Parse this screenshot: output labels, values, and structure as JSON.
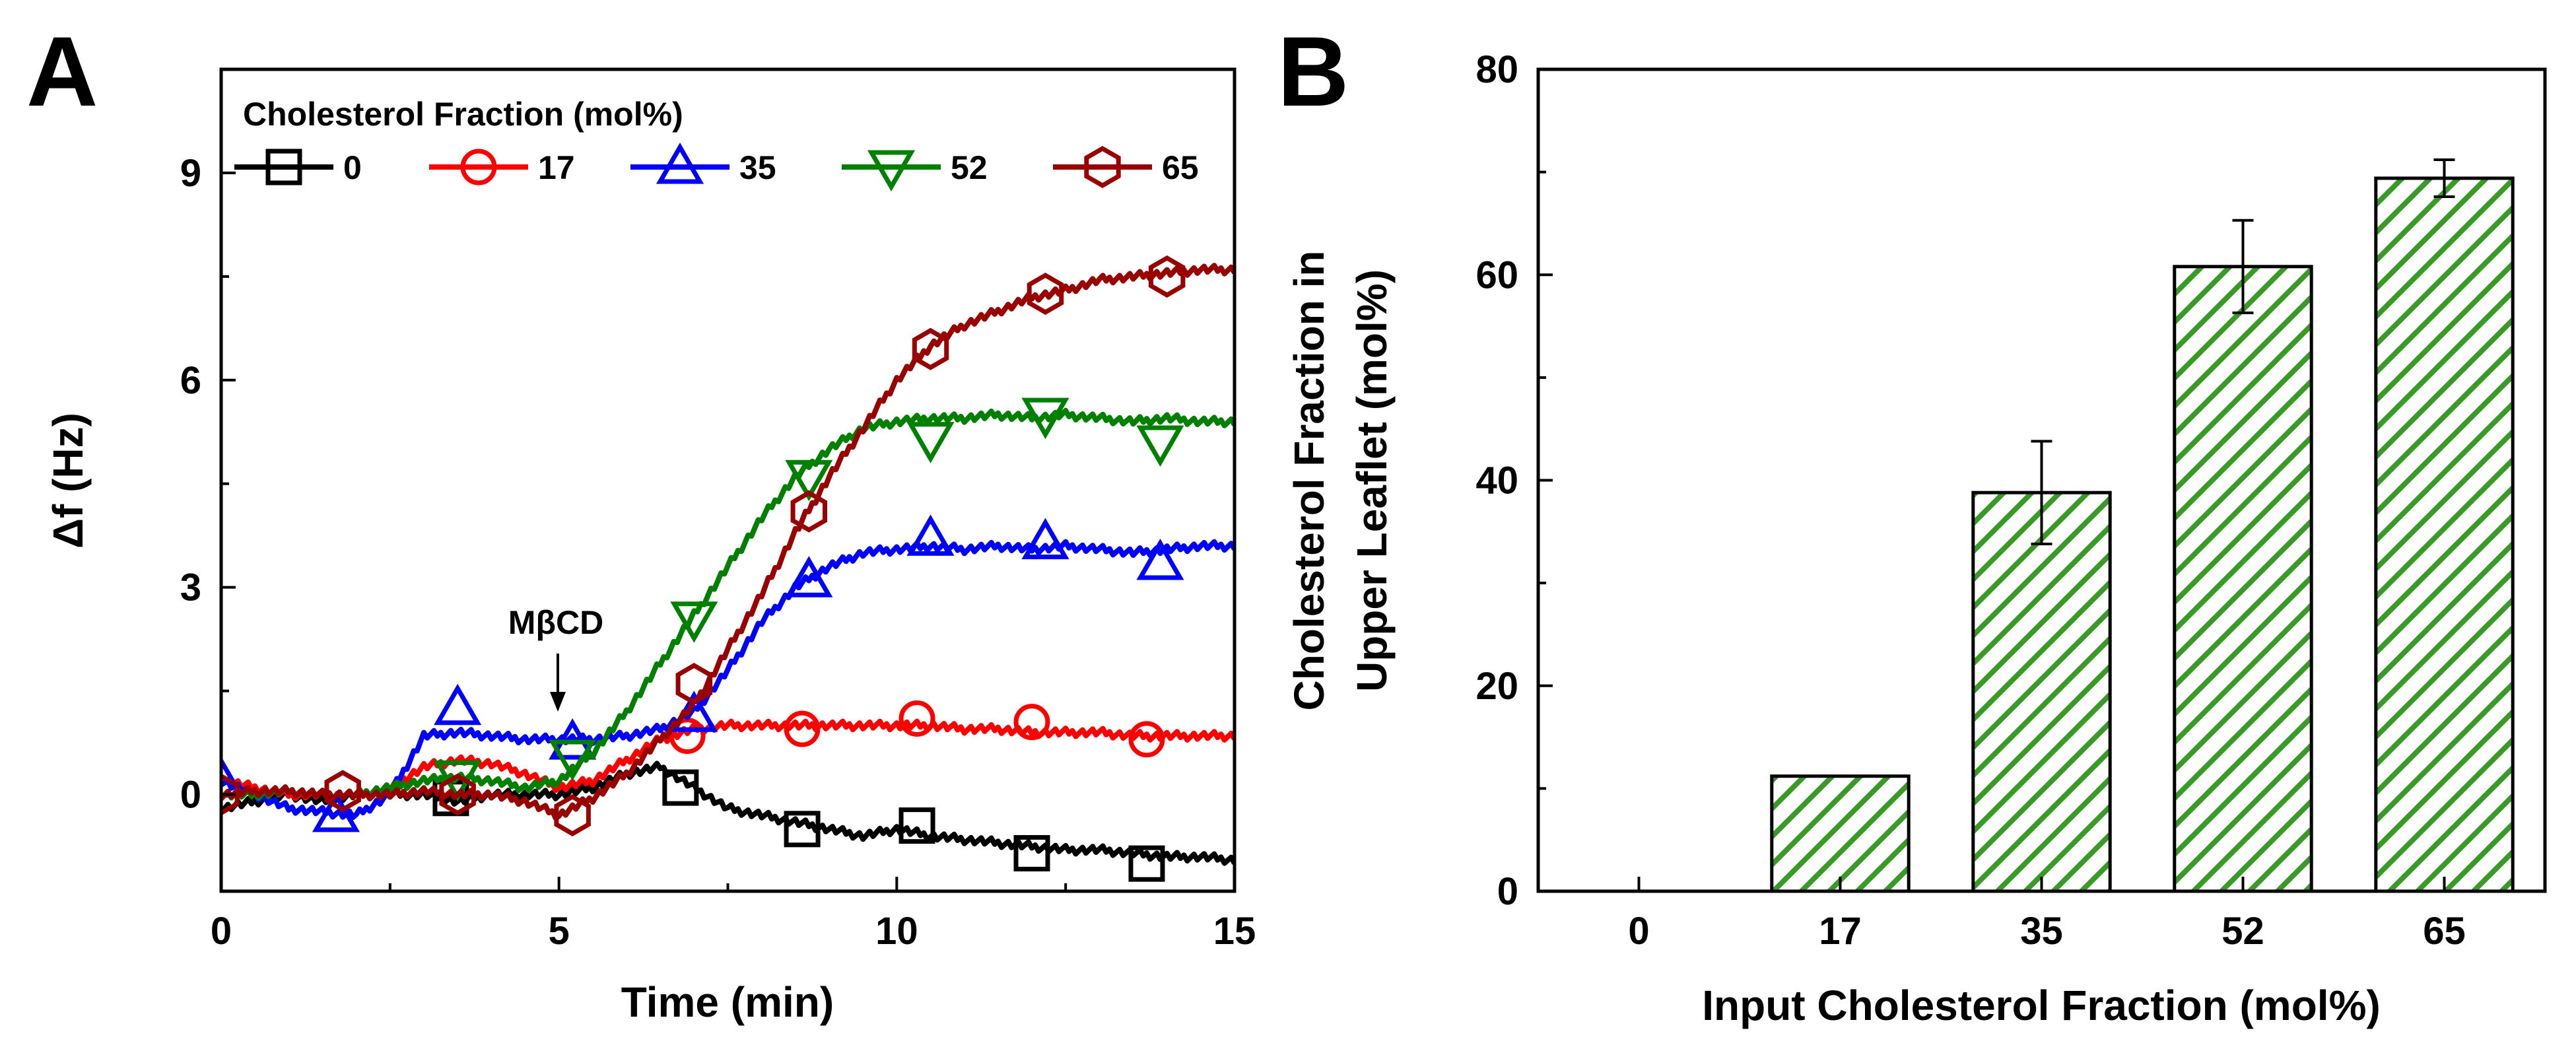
{
  "chart_data": [
    {
      "type": "line",
      "panel": "A",
      "xlabel": "Time (min)",
      "ylabel": "Δf (Hz)",
      "xlim": [
        0,
        15
      ],
      "ylim": [
        -1.4,
        10.5
      ],
      "xticks": [
        0,
        5,
        10,
        15
      ],
      "yticks": [
        0,
        3,
        6,
        9
      ],
      "legend_title": "Cholesterol Fraction (mol%)",
      "annotation": "MβCD",
      "annotation_x": 5,
      "series": [
        {
          "name": "0",
          "color": "#000000",
          "marker": "square",
          "x": [
            0,
            0.5,
            1,
            1.5,
            2,
            2.5,
            3,
            3.5,
            4,
            4.5,
            5,
            5.5,
            6,
            6.5,
            7,
            7.5,
            8,
            8.5,
            9,
            9.5,
            10,
            10.5,
            11,
            11.5,
            12,
            12.5,
            13,
            13.5,
            14,
            14.5,
            15
          ],
          "y": [
            -0.2,
            -0.1,
            0,
            -0.1,
            0,
            0,
            0,
            -0.1,
            0,
            0,
            0,
            0.1,
            0.3,
            0.4,
            0.1,
            -0.2,
            -0.3,
            -0.4,
            -0.5,
            -0.6,
            -0.5,
            -0.6,
            -0.65,
            -0.7,
            -0.75,
            -0.8,
            -0.8,
            -0.85,
            -0.9,
            -0.9,
            -0.95
          ],
          "mx": [
            3.4,
            6.8,
            8.6,
            10.3,
            12,
            13.7
          ],
          "my": [
            -0.05,
            0.1,
            -0.5,
            -0.45,
            -0.85,
            -1.0
          ]
        },
        {
          "name": "17",
          "color": "#ff0000",
          "marker": "circle",
          "x": [
            0,
            0.5,
            1,
            1.5,
            2,
            2.5,
            3,
            3.5,
            4,
            4.5,
            5,
            5.5,
            6,
            6.5,
            7,
            7.5,
            8,
            8.5,
            9,
            9.5,
            10,
            10.5,
            11,
            11.5,
            12,
            12.5,
            13,
            13.5,
            14,
            14.5,
            15
          ],
          "y": [
            0.2,
            0.1,
            0,
            0,
            0,
            0.1,
            0.4,
            0.5,
            0.45,
            0.3,
            0.1,
            0.2,
            0.5,
            0.8,
            0.95,
            1.0,
            1.0,
            1.0,
            1.0,
            1.0,
            1.0,
            1.0,
            0.95,
            0.95,
            0.9,
            0.9,
            0.9,
            0.85,
            0.85,
            0.85,
            0.85
          ],
          "mx": [
            6.9,
            8.6,
            10.3,
            12,
            13.7
          ],
          "my": [
            0.85,
            0.95,
            1.1,
            1.05,
            0.8
          ]
        },
        {
          "name": "35",
          "color": "#0000ff",
          "marker": "triangle-up",
          "x": [
            0,
            0.5,
            1,
            1.5,
            2,
            2.5,
            3,
            3.5,
            4,
            4.5,
            5,
            5.5,
            6,
            6.5,
            7,
            7.5,
            8,
            8.5,
            9,
            9.5,
            10,
            10.5,
            11,
            11.5,
            12,
            12.5,
            13,
            13.5,
            14,
            14.5,
            15
          ],
          "y": [
            0.2,
            0,
            -0.2,
            -0.25,
            -0.3,
            0,
            0.85,
            0.9,
            0.85,
            0.8,
            0.8,
            0.8,
            0.85,
            0.95,
            1.2,
            1.8,
            2.5,
            3.0,
            3.3,
            3.5,
            3.55,
            3.6,
            3.55,
            3.6,
            3.55,
            3.6,
            3.55,
            3.5,
            3.55,
            3.6,
            3.6
          ],
          "mx": [
            0,
            1.7,
            3.5,
            5.2,
            7.0,
            8.7,
            10.5,
            12.2,
            13.9
          ],
          "my": [
            0.2,
            -0.3,
            1.25,
            0.75,
            1.15,
            3.1,
            3.7,
            3.65,
            3.35
          ]
        },
        {
          "name": "52",
          "color": "#008000",
          "marker": "triangle-down",
          "x": [
            0,
            0.5,
            1,
            1.5,
            2,
            2.5,
            3,
            3.5,
            4,
            4.5,
            5,
            5.5,
            6,
            6.5,
            7,
            7.5,
            8,
            8.5,
            9,
            9.5,
            10,
            10.5,
            11,
            11.5,
            12,
            12.5,
            13,
            13.5,
            14,
            14.5,
            15
          ],
          "y": [
            0,
            0,
            0.05,
            0,
            0,
            0.1,
            0.2,
            0.25,
            0.2,
            0.1,
            0.2,
            0.6,
            1.2,
            1.9,
            2.6,
            3.3,
            4.0,
            4.6,
            5.0,
            5.3,
            5.4,
            5.45,
            5.45,
            5.5,
            5.45,
            5.5,
            5.45,
            5.4,
            5.45,
            5.4,
            5.4
          ],
          "mx": [
            3.5,
            5.2,
            7.0,
            8.7,
            10.5,
            12.2,
            13.9
          ],
          "my": [
            0.25,
            0.55,
            2.55,
            4.6,
            5.15,
            5.5,
            5.1
          ]
        },
        {
          "name": "65",
          "color": "#990000",
          "marker": "hexagon",
          "x": [
            0,
            0.5,
            1,
            1.5,
            2,
            2.5,
            3,
            3.5,
            4,
            4.5,
            5,
            5.5,
            6,
            6.5,
            7,
            7.5,
            8,
            8.5,
            9,
            9.5,
            10,
            10.5,
            11,
            11.5,
            12,
            12.5,
            13,
            13.5,
            14,
            14.5,
            15
          ],
          "y": [
            0,
            0.05,
            0.05,
            0,
            0,
            0,
            0.05,
            0,
            0,
            -0.1,
            -0.3,
            -0.05,
            0.3,
            0.8,
            1.3,
            2.1,
            2.9,
            3.8,
            4.6,
            5.3,
            6.0,
            6.5,
            6.8,
            7.0,
            7.2,
            7.3,
            7.45,
            7.5,
            7.55,
            7.6,
            7.6
          ],
          "mx": [
            0,
            1.8,
            3.5,
            5.2,
            7.0,
            8.7,
            10.5,
            12.2,
            14.0
          ],
          "my": [
            0,
            0.05,
            0,
            -0.3,
            1.6,
            4.1,
            6.45,
            7.25,
            7.5
          ]
        }
      ]
    },
    {
      "type": "bar",
      "panel": "B",
      "xlabel": "Input Cholesterol Fraction (mol%)",
      "ylabel_lines": [
        "Cholesterol Fraction in",
        "Upper Leaflet (mol%)"
      ],
      "ylim": [
        0,
        80
      ],
      "yticks": [
        0,
        20,
        40,
        60,
        80
      ],
      "categories": [
        "0",
        "17",
        "35",
        "52",
        "65"
      ],
      "values": [
        0,
        11.2,
        38.8,
        60.8,
        69.4
      ],
      "errors": [
        0,
        0,
        5,
        4.5,
        1.8
      ],
      "fill": "hatched",
      "hatch_color": "#3a9a28"
    }
  ]
}
